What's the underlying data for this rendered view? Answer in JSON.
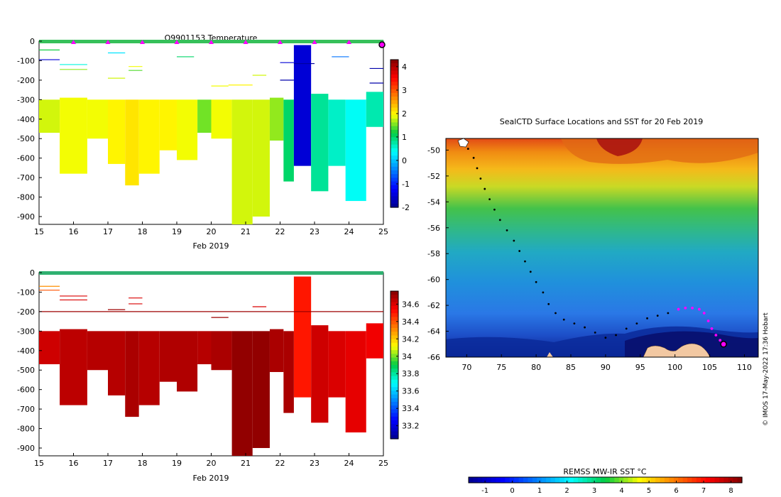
{
  "chart_data": [
    {
      "type": "heatmap",
      "title": "Q9901153  Temperature",
      "xlabel": "Feb 2019",
      "ylabel": "",
      "xlim": [
        15,
        25
      ],
      "ylim": [
        -940,
        0
      ],
      "x_ticks": [
        15,
        16,
        17,
        18,
        19,
        20,
        21,
        22,
        23,
        24,
        25
      ],
      "y_ticks": [
        0,
        -100,
        -200,
        -300,
        -400,
        -500,
        -600,
        -700,
        -800,
        -900
      ],
      "colorbar": {
        "min": -2,
        "max": 4.3,
        "ticks": [
          4,
          3,
          2,
          1,
          0,
          -1,
          -2
        ]
      },
      "surface_markers_x": [
        16,
        17,
        18,
        19,
        20,
        21,
        22,
        23,
        24
      ],
      "latest_profile_x": 25,
      "thin_lines": [
        {
          "x0": 15,
          "x1": 15.6,
          "depth": -45,
          "value": 1.2
        },
        {
          "x0": 15,
          "x1": 15.6,
          "depth": -95,
          "value": -1.5
        },
        {
          "x0": 15.6,
          "x1": 16.4,
          "depth": -120,
          "value": 0.5
        },
        {
          "x0": 15.6,
          "x1": 16.4,
          "depth": -145,
          "value": 1.6
        },
        {
          "x0": 17,
          "x1": 17.5,
          "depth": -60,
          "value": 0.2
        },
        {
          "x0": 17,
          "x1": 17.5,
          "depth": -190,
          "value": 1.8
        },
        {
          "x0": 17.6,
          "x1": 18,
          "depth": -130,
          "value": 1.9
        },
        {
          "x0": 17.6,
          "x1": 18,
          "depth": -150,
          "value": 1.4
        },
        {
          "x0": 19,
          "x1": 19.5,
          "depth": -80,
          "value": 1.0
        },
        {
          "x0": 20,
          "x1": 20.5,
          "depth": -230,
          "value": 1.9
        },
        {
          "x0": 20.5,
          "x1": 21.2,
          "depth": -225,
          "value": 2.0
        },
        {
          "x0": 21.2,
          "x1": 21.6,
          "depth": -175,
          "value": 1.8
        },
        {
          "x0": 22,
          "x1": 22.4,
          "depth": -110,
          "value": -1.5
        },
        {
          "x0": 22,
          "x1": 22.4,
          "depth": -200,
          "value": -1.8
        },
        {
          "x0": 22.4,
          "x1": 23,
          "depth": -115,
          "value": -1.9
        },
        {
          "x0": 23.5,
          "x1": 24,
          "depth": -80,
          "value": -0.5
        },
        {
          "x0": 24.6,
          "x1": 25,
          "depth": -140,
          "value": -1.8
        },
        {
          "x0": 24.6,
          "x1": 25,
          "depth": -215,
          "value": -1.8
        }
      ],
      "blocks": [
        {
          "x0": 15,
          "x1": 15.6,
          "top": -300,
          "bottom": -470,
          "value": 1.8
        },
        {
          "x0": 15.6,
          "x1": 16.4,
          "top": -290,
          "bottom": -680,
          "value": 1.9
        },
        {
          "x0": 16.4,
          "x1": 17,
          "top": -300,
          "bottom": -500,
          "value": 1.9
        },
        {
          "x0": 17,
          "x1": 17.5,
          "top": -300,
          "bottom": -630,
          "value": 2.0
        },
        {
          "x0": 17.5,
          "x1": 17.9,
          "top": -300,
          "bottom": -740,
          "value": 2.1
        },
        {
          "x0": 17.9,
          "x1": 18.5,
          "top": -300,
          "bottom": -680,
          "value": 2.0
        },
        {
          "x0": 18.5,
          "x1": 19,
          "top": -300,
          "bottom": -560,
          "value": 2.0
        },
        {
          "x0": 19,
          "x1": 19.6,
          "top": -300,
          "bottom": -610,
          "value": 1.9
        },
        {
          "x0": 19.6,
          "x1": 20,
          "top": -300,
          "bottom": -470,
          "value": 1.5
        },
        {
          "x0": 20,
          "x1": 20.6,
          "top": -300,
          "bottom": -500,
          "value": 1.9
        },
        {
          "x0": 20.6,
          "x1": 21.2,
          "top": -300,
          "bottom": -940,
          "value": 1.8
        },
        {
          "x0": 21.2,
          "x1": 21.7,
          "top": -300,
          "bottom": -900,
          "value": 1.8
        },
        {
          "x0": 21.7,
          "x1": 22.1,
          "top": -290,
          "bottom": -510,
          "value": 1.6
        },
        {
          "x0": 22.1,
          "x1": 22.4,
          "top": -300,
          "bottom": -720,
          "value": 1.0
        },
        {
          "x0": 22.4,
          "x1": 22.9,
          "top": -20,
          "bottom": -640,
          "value": -1.5
        },
        {
          "x0": 22.9,
          "x1": 23.4,
          "top": -270,
          "bottom": -770,
          "value": 0.8
        },
        {
          "x0": 23.4,
          "x1": 23.9,
          "top": -300,
          "bottom": -640,
          "value": 0.6
        },
        {
          "x0": 23.9,
          "x1": 24.5,
          "top": -300,
          "bottom": -820,
          "value": 0.4
        },
        {
          "x0": 24.5,
          "x1": 25,
          "top": -260,
          "bottom": -440,
          "value": 0.7
        }
      ]
    },
    {
      "type": "heatmap",
      "title": "",
      "xlabel": "Feb 2019",
      "ylabel": "",
      "xlim": [
        15,
        25
      ],
      "ylim": [
        -940,
        0
      ],
      "x_ticks": [
        15,
        16,
        17,
        18,
        19,
        20,
        21,
        22,
        23,
        24,
        25
      ],
      "y_ticks": [
        0,
        -100,
        -200,
        -300,
        -400,
        -500,
        -600,
        -700,
        -800,
        -900
      ],
      "colorbar": {
        "min": 33.05,
        "max": 34.75,
        "ticks": [
          34.6,
          34.4,
          34.2,
          34,
          33.8,
          33.6,
          33.4,
          33.2
        ]
      },
      "thin_lines": [
        {
          "x0": 15,
          "x1": 15.6,
          "depth": -70,
          "value": 34.3
        },
        {
          "x0": 15,
          "x1": 15.6,
          "depth": -90,
          "value": 34.4
        },
        {
          "x0": 15.6,
          "x1": 16.4,
          "depth": -120,
          "value": 34.6
        },
        {
          "x0": 15.6,
          "x1": 16.4,
          "depth": -140,
          "value": 34.6
        },
        {
          "x0": 17,
          "x1": 17.5,
          "depth": -190,
          "value": 34.7
        },
        {
          "x0": 17.6,
          "x1": 18,
          "depth": -130,
          "value": 34.6
        },
        {
          "x0": 17.6,
          "x1": 18,
          "depth": -160,
          "value": 34.6
        },
        {
          "x0": 20,
          "x1": 20.5,
          "depth": -230,
          "value": 34.7
        },
        {
          "x0": 21.2,
          "x1": 21.6,
          "depth": -175,
          "value": 34.6
        },
        {
          "x0": 15,
          "x1": 25,
          "depth": -200,
          "value": 34.7
        }
      ],
      "blocks": [
        {
          "x0": 15,
          "x1": 15.6,
          "top": -300,
          "bottom": -470,
          "value": 34.62
        },
        {
          "x0": 15.6,
          "x1": 16.4,
          "top": -290,
          "bottom": -680,
          "value": 34.65
        },
        {
          "x0": 16.4,
          "x1": 17,
          "top": -300,
          "bottom": -500,
          "value": 34.66
        },
        {
          "x0": 17,
          "x1": 17.5,
          "top": -300,
          "bottom": -630,
          "value": 34.66
        },
        {
          "x0": 17.5,
          "x1": 17.9,
          "top": -300,
          "bottom": -740,
          "value": 34.68
        },
        {
          "x0": 17.9,
          "x1": 18.5,
          "top": -300,
          "bottom": -680,
          "value": 34.66
        },
        {
          "x0": 18.5,
          "x1": 19,
          "top": -300,
          "bottom": -560,
          "value": 34.67
        },
        {
          "x0": 19,
          "x1": 19.6,
          "top": -300,
          "bottom": -610,
          "value": 34.67
        },
        {
          "x0": 19.6,
          "x1": 20,
          "top": -300,
          "bottom": -470,
          "value": 34.66
        },
        {
          "x0": 20,
          "x1": 20.6,
          "top": -300,
          "bottom": -500,
          "value": 34.68
        },
        {
          "x0": 20.6,
          "x1": 21.2,
          "top": -300,
          "bottom": -940,
          "value": 34.72
        },
        {
          "x0": 21.2,
          "x1": 21.7,
          "top": -300,
          "bottom": -900,
          "value": 34.72
        },
        {
          "x0": 21.7,
          "x1": 22.1,
          "top": -290,
          "bottom": -510,
          "value": 34.68
        },
        {
          "x0": 22.1,
          "x1": 22.4,
          "top": -300,
          "bottom": -720,
          "value": 34.68
        },
        {
          "x0": 22.4,
          "x1": 22.9,
          "top": -20,
          "bottom": -640,
          "value": 34.5
        },
        {
          "x0": 22.9,
          "x1": 23.4,
          "top": -270,
          "bottom": -770,
          "value": 34.62
        },
        {
          "x0": 23.4,
          "x1": 23.9,
          "top": -300,
          "bottom": -640,
          "value": 34.6
        },
        {
          "x0": 23.9,
          "x1": 24.5,
          "top": -300,
          "bottom": -820,
          "value": 34.58
        },
        {
          "x0": 24.5,
          "x1": 25,
          "top": -260,
          "bottom": -440,
          "value": 34.56
        }
      ]
    },
    {
      "type": "scatter",
      "title": "SealCTD Surface Locations and SST for 20 Feb 2019",
      "xlabel": "",
      "ylabel": "",
      "xlim": [
        67,
        112
      ],
      "ylim": [
        -66,
        -49.1
      ],
      "x_ticks": [
        70,
        75,
        80,
        85,
        90,
        95,
        100,
        105,
        110
      ],
      "y_ticks": [
        -50,
        -52,
        -54,
        -56,
        -58,
        -60,
        -62,
        -64,
        -66
      ],
      "colorbar_label": "REMSS MW-IR SST °C",
      "colorbar": {
        "min": -1.6,
        "max": 8.4,
        "ticks": [
          -1,
          0,
          1,
          2,
          3,
          4,
          5,
          6,
          7,
          8
        ]
      },
      "credit": "© IMOS 17-May-2022 17:36 Hobart",
      "track_black": [
        [
          70.2,
          -49.9
        ],
        [
          71,
          -50.6
        ],
        [
          71.5,
          -51.4
        ],
        [
          72,
          -52.2
        ],
        [
          72.6,
          -53
        ],
        [
          73.3,
          -53.8
        ],
        [
          74,
          -54.6
        ],
        [
          74.8,
          -55.4
        ],
        [
          75.8,
          -56.2
        ],
        [
          76.8,
          -57
        ],
        [
          77.6,
          -57.8
        ],
        [
          78.4,
          -58.6
        ],
        [
          79.2,
          -59.4
        ],
        [
          80,
          -60.2
        ],
        [
          81,
          -61
        ],
        [
          81.8,
          -61.9
        ],
        [
          82.8,
          -62.6
        ],
        [
          84,
          -63.1
        ],
        [
          85.5,
          -63.4
        ],
        [
          87,
          -63.7
        ],
        [
          88.5,
          -64.1
        ],
        [
          90,
          -64.5
        ],
        [
          91.5,
          -64.3
        ],
        [
          93,
          -63.8
        ],
        [
          94.5,
          -63.4
        ],
        [
          96,
          -63
        ],
        [
          97.5,
          -62.8
        ],
        [
          99,
          -62.6
        ]
      ],
      "track_magenta": [
        [
          100.5,
          -62.3
        ],
        [
          101.5,
          -62.2
        ],
        [
          102.5,
          -62.2
        ],
        [
          103.5,
          -62.3
        ],
        [
          104.2,
          -62.6
        ],
        [
          104.8,
          -63.2
        ],
        [
          105.3,
          -63.8
        ],
        [
          105.9,
          -64.3
        ],
        [
          106.5,
          -64.7
        ],
        [
          107,
          -65
        ]
      ],
      "latest_position": [
        107,
        -65
      ]
    }
  ]
}
